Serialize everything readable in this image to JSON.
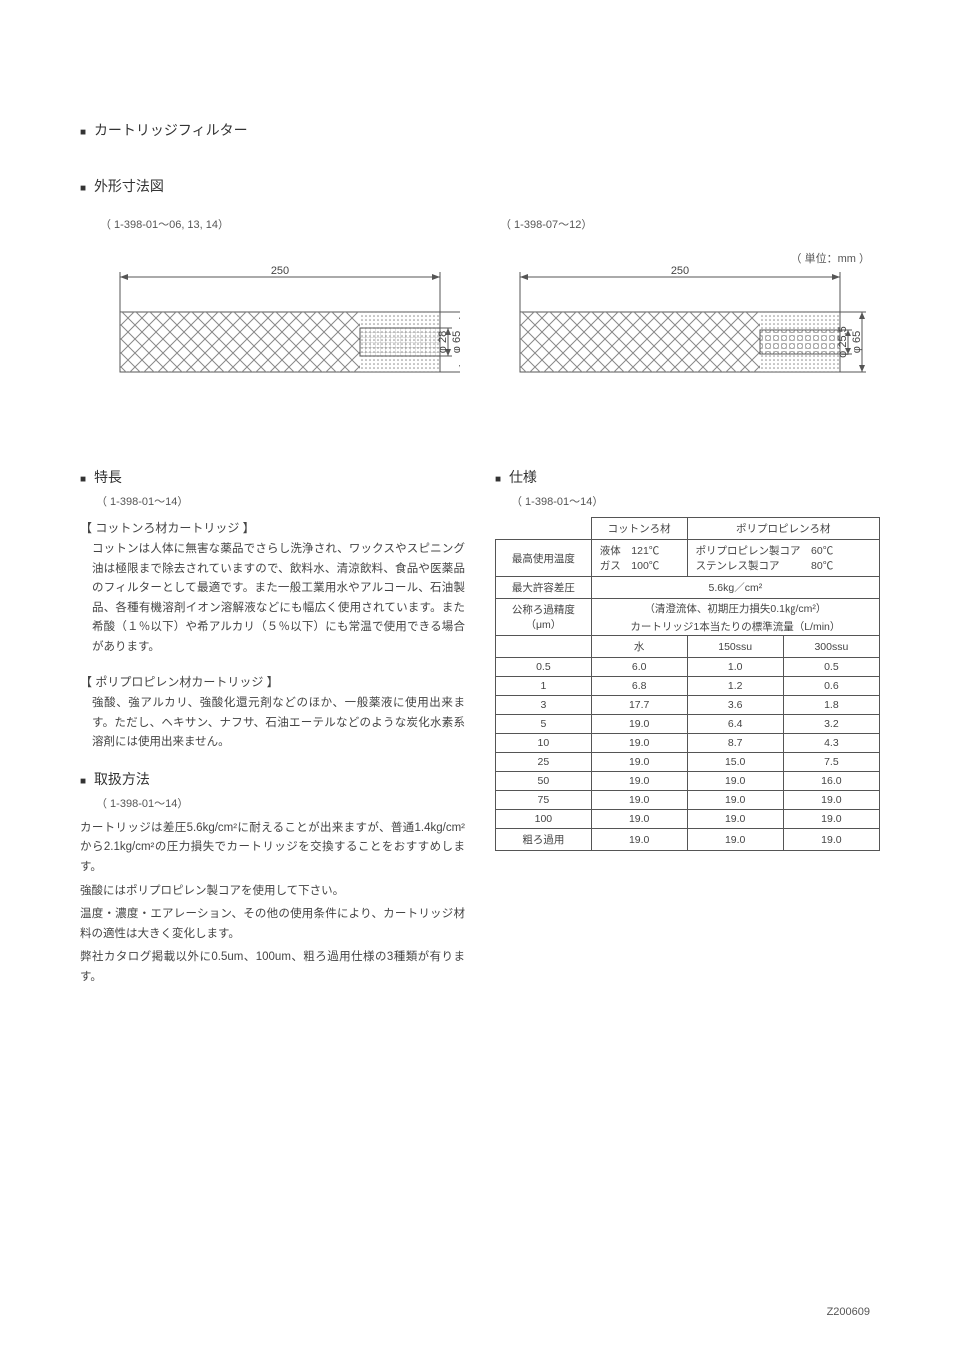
{
  "page_title": "カートリッジフィルター",
  "dim_section_title": "外形寸法図",
  "unit_label": "（ 単位：mm ）",
  "diagram_left": {
    "ref": "（ 1-398-01～06, 13, 14）",
    "length": "250",
    "inner_dia": "φ 28",
    "outer_dia": "φ 65"
  },
  "diagram_right": {
    "ref": "（ 1-398-07～12）",
    "length": "250",
    "inner_dia": "φ 25.5",
    "outer_dia": "φ 65"
  },
  "features": {
    "title": "特長",
    "ref": "（ 1-398-01～14）",
    "cotton_title": "【 コットンろ材カートリッジ 】",
    "cotton_body": "コットンは人体に無害な薬品でさらし洗浄され、ワックスやスピニング油は極限まで除去されていますので、飲料水、清涼飲料、食品や医薬品のフィルターとして最適です。また一般工業用水やアルコール、石油製品、各種有機溶剤イオン溶解液などにも幅広く使用されています。また希酸（１％以下）や希アルカリ（５％以下）にも常温で使用できる場合があります。",
    "pp_title": "【 ポリプロピレン材カートリッジ 】",
    "pp_body": "強酸、強アルカリ、強酸化還元剤などのほか、一般薬液に使用出来ます。ただし、ヘキサン、ナフサ、石油エーテルなどのような炭化水素系溶剤には使用出来ません。"
  },
  "handling": {
    "title": "取扱方法",
    "ref": "（ 1-398-01～14）",
    "body1": "カートリッジは差圧5.6kg/cm²に耐えることが出来ますが、普通1.4kg/cm²から2.1kg/cm²の圧力損失でカートリッジを交換することをおすすめします。",
    "body2": "強酸にはポリプロピレン製コアを使用して下さい。",
    "body3": "温度・濃度・エアレーション、その他の使用条件により、カートリッジ材料の適性は大きく変化します。",
    "body4": "弊社カタログ掲載以外に0.5um、100um、粗ろ過用仕様の3種類が有ります。"
  },
  "spec": {
    "title": "仕様",
    "ref": "（ 1-398-01～14）",
    "headers": {
      "cotton": "コットンろ材",
      "pp": "ポリプロピレンろ材",
      "max_temp": "最高使用温度",
      "cotton_temp": "液体　121℃\nガス　100℃",
      "pp_temp1": "ポリプロピレン製コア　60℃",
      "pp_temp2": "ステンレス製コア　　　80℃",
      "max_diff": "最大許容差圧",
      "max_diff_val": "5.6kg／cm²",
      "nominal": "公称ろ過精度\n（μm）",
      "clean_fluid": "（清澄流体、初期圧力損失0.1㎏/cm²）",
      "standard_flow": "カートリッジ1本当たりの標準流量（L/min）",
      "water": "水",
      "ssu150": "150ssu",
      "ssu300": "300ssu"
    },
    "rows": [
      {
        "um": "0.5",
        "w": "6.0",
        "s1": "1.0",
        "s3": "0.5"
      },
      {
        "um": "1",
        "w": "6.8",
        "s1": "1.2",
        "s3": "0.6"
      },
      {
        "um": "3",
        "w": "17.7",
        "s1": "3.6",
        "s3": "1.8"
      },
      {
        "um": "5",
        "w": "19.0",
        "s1": "6.4",
        "s3": "3.2"
      },
      {
        "um": "10",
        "w": "19.0",
        "s1": "8.7",
        "s3": "4.3"
      },
      {
        "um": "25",
        "w": "19.0",
        "s1": "15.0",
        "s3": "7.5"
      },
      {
        "um": "50",
        "w": "19.0",
        "s1": "19.0",
        "s3": "16.0"
      },
      {
        "um": "75",
        "w": "19.0",
        "s1": "19.0",
        "s3": "19.0"
      },
      {
        "um": "100",
        "w": "19.0",
        "s1": "19.0",
        "s3": "19.0"
      },
      {
        "um": "粗ろ過用",
        "w": "19.0",
        "s1": "19.0",
        "s3": "19.0"
      }
    ]
  },
  "page_code": "Z200609",
  "colors": {
    "text": "#4a4a4a",
    "line": "#555555",
    "hatch": "#888888"
  }
}
